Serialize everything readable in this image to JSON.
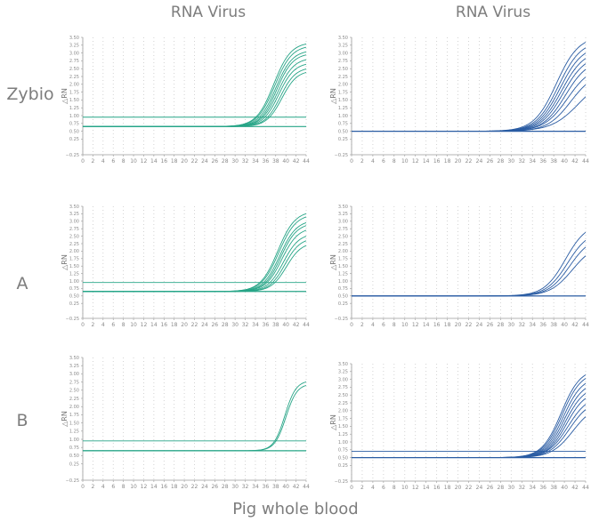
{
  "column_titles": [
    "RNA Virus",
    "RNA Virus"
  ],
  "row_labels": [
    "Zybio",
    "A",
    "B"
  ],
  "footer": "Pig whole blood",
  "colors": {
    "green": "#27a587",
    "blue": "#2a5ca3",
    "axis": "#9a9a9a",
    "grid": "#c9c9c9",
    "text": "#7d7d7d"
  },
  "chart_data": [
    {
      "type": "line",
      "ylabel": "△RN",
      "xlim": [
        0,
        44
      ],
      "ylim": [
        -0.25,
        3.5
      ],
      "x_ticks": [
        0,
        2,
        4,
        6,
        8,
        10,
        12,
        14,
        16,
        18,
        20,
        22,
        24,
        26,
        28,
        30,
        32,
        34,
        36,
        38,
        40,
        42,
        44
      ],
      "y_ticks": [
        -0.25,
        0.25,
        0.5,
        0.75,
        1.0,
        1.25,
        1.5,
        1.75,
        2.0,
        2.25,
        2.5,
        2.75,
        3.0,
        3.25,
        3.5
      ],
      "color": "#27a587",
      "baseline": 0.65,
      "threshold": 0.95,
      "curves": [
        {
          "plateau": 3.35,
          "midpoint": 37.6,
          "steepness": 1.7
        },
        {
          "plateau": 3.25,
          "midpoint": 37.8,
          "steepness": 1.7
        },
        {
          "plateau": 3.1,
          "midpoint": 38.0,
          "steepness": 1.65
        },
        {
          "plateau": 3.0,
          "midpoint": 38.2,
          "steepness": 1.6
        },
        {
          "plateau": 2.85,
          "midpoint": 38.4,
          "steepness": 1.6
        },
        {
          "plateau": 2.7,
          "midpoint": 38.6,
          "steepness": 1.55
        },
        {
          "plateau": 2.55,
          "midpoint": 38.9,
          "steepness": 1.5
        },
        {
          "plateau": 2.45,
          "midpoint": 39.2,
          "steepness": 1.5
        }
      ]
    },
    {
      "type": "line",
      "ylabel": "△RN",
      "xlim": [
        0,
        44
      ],
      "ylim": [
        -0.25,
        3.5
      ],
      "x_ticks": [
        0,
        2,
        4,
        6,
        8,
        10,
        12,
        14,
        16,
        18,
        20,
        22,
        24,
        26,
        28,
        30,
        32,
        34,
        36,
        38,
        40,
        42,
        44
      ],
      "y_ticks": [
        -0.25,
        0.25,
        0.5,
        0.75,
        1.0,
        1.25,
        1.5,
        1.75,
        2.0,
        2.25,
        2.5,
        2.75,
        3.0,
        3.25,
        3.5
      ],
      "color": "#2a5ca3",
      "baseline": 0.5,
      "threshold": 0.5,
      "curves": [
        {
          "plateau": 3.55,
          "midpoint": 38.5,
          "steepness": 2.1
        },
        {
          "plateau": 3.4,
          "midpoint": 38.9,
          "steepness": 2.1
        },
        {
          "plateau": 3.25,
          "midpoint": 39.2,
          "steepness": 2.1
        },
        {
          "plateau": 3.1,
          "midpoint": 39.5,
          "steepness": 2.1
        },
        {
          "plateau": 2.95,
          "midpoint": 39.8,
          "steepness": 2.1
        },
        {
          "plateau": 2.8,
          "midpoint": 40.2,
          "steepness": 2.1
        },
        {
          "plateau": 2.6,
          "midpoint": 40.6,
          "steepness": 2.2
        },
        {
          "plateau": 2.4,
          "midpoint": 41.2,
          "steepness": 2.2
        },
        {
          "plateau": 2.3,
          "midpoint": 42.8,
          "steepness": 2.6
        }
      ]
    },
    {
      "type": "line",
      "ylabel": "△RN",
      "xlim": [
        0,
        44
      ],
      "ylim": [
        -0.25,
        3.5
      ],
      "x_ticks": [
        0,
        2,
        4,
        6,
        8,
        10,
        12,
        14,
        16,
        18,
        20,
        22,
        24,
        26,
        28,
        30,
        32,
        34,
        36,
        38,
        40,
        42,
        44
      ],
      "y_ticks": [
        -0.25,
        0.25,
        0.5,
        0.75,
        1.0,
        1.25,
        1.5,
        1.75,
        2.0,
        2.25,
        2.5,
        2.75,
        3.0,
        3.25,
        3.5
      ],
      "color": "#27a587",
      "baseline": 0.65,
      "threshold": 0.95,
      "curves": [
        {
          "plateau": 3.35,
          "midpoint": 38.4,
          "steepness": 1.7
        },
        {
          "plateau": 3.25,
          "midpoint": 38.6,
          "steepness": 1.7
        },
        {
          "plateau": 3.05,
          "midpoint": 38.8,
          "steepness": 1.65
        },
        {
          "plateau": 2.95,
          "midpoint": 39.0,
          "steepness": 1.6
        },
        {
          "plateau": 2.8,
          "midpoint": 39.2,
          "steepness": 1.6
        },
        {
          "plateau": 2.6,
          "midpoint": 39.5,
          "steepness": 1.55
        },
        {
          "plateau": 2.45,
          "midpoint": 39.8,
          "steepness": 1.5
        },
        {
          "plateau": 2.3,
          "midpoint": 40.1,
          "steepness": 1.5
        }
      ]
    },
    {
      "type": "line",
      "ylabel": "△RN",
      "xlim": [
        0,
        44
      ],
      "ylim": [
        -0.25,
        3.5
      ],
      "x_ticks": [
        0,
        2,
        4,
        6,
        8,
        10,
        12,
        14,
        16,
        18,
        20,
        22,
        24,
        26,
        28,
        30,
        32,
        34,
        36,
        38,
        40,
        42,
        44
      ],
      "y_ticks": [
        -0.25,
        0.25,
        0.5,
        0.75,
        1.0,
        1.25,
        1.5,
        1.75,
        2.0,
        2.25,
        2.5,
        2.75,
        3.0,
        3.25,
        3.5
      ],
      "color": "#2a5ca3",
      "baseline": 0.5,
      "threshold": 0.5,
      "curves": [
        {
          "plateau": 2.95,
          "midpoint": 40.2,
          "steepness": 2.0
        },
        {
          "plateau": 2.7,
          "midpoint": 40.6,
          "steepness": 2.0
        },
        {
          "plateau": 2.5,
          "midpoint": 41.0,
          "steepness": 2.0
        },
        {
          "plateau": 2.25,
          "midpoint": 41.5,
          "steepness": 2.1
        }
      ]
    },
    {
      "type": "line",
      "ylabel": "△RN",
      "xlim": [
        0,
        44
      ],
      "ylim": [
        -0.25,
        3.5
      ],
      "x_ticks": [
        0,
        2,
        4,
        6,
        8,
        10,
        12,
        14,
        16,
        18,
        20,
        22,
        24,
        26,
        28,
        30,
        32,
        34,
        36,
        38,
        40,
        42,
        44
      ],
      "y_ticks": [
        -0.25,
        0.25,
        0.5,
        0.75,
        1.0,
        1.25,
        1.5,
        1.75,
        2.0,
        2.25,
        2.5,
        2.75,
        3.0,
        3.25,
        3.5
      ],
      "color": "#27a587",
      "baseline": 0.65,
      "threshold": 0.95,
      "curves": [
        {
          "plateau": 2.8,
          "midpoint": 39.8,
          "steepness": 1.1
        },
        {
          "plateau": 2.7,
          "midpoint": 40.0,
          "steepness": 1.1
        }
      ]
    },
    {
      "type": "line",
      "ylabel": "△RN",
      "xlim": [
        0,
        44
      ],
      "ylim": [
        -0.25,
        3.5
      ],
      "x_ticks": [
        0,
        2,
        4,
        6,
        8,
        10,
        12,
        14,
        16,
        18,
        20,
        22,
        24,
        26,
        28,
        30,
        32,
        34,
        36,
        38,
        40,
        42,
        44
      ],
      "y_ticks": [
        -0.25,
        0.25,
        0.5,
        0.75,
        1.0,
        1.25,
        1.5,
        1.75,
        2.0,
        2.25,
        2.5,
        2.75,
        3.0,
        3.25,
        3.5
      ],
      "color": "#2a5ca3",
      "baseline": 0.5,
      "threshold": 0.7,
      "curves": [
        {
          "plateau": 3.35,
          "midpoint": 39.4,
          "steepness": 1.8
        },
        {
          "plateau": 3.25,
          "midpoint": 39.6,
          "steepness": 1.8
        },
        {
          "plateau": 3.1,
          "midpoint": 39.8,
          "steepness": 1.8
        },
        {
          "plateau": 2.95,
          "midpoint": 40.0,
          "steepness": 1.8
        },
        {
          "plateau": 2.8,
          "midpoint": 40.2,
          "steepness": 1.8
        },
        {
          "plateau": 2.65,
          "midpoint": 40.4,
          "steepness": 1.8
        },
        {
          "plateau": 2.5,
          "midpoint": 40.7,
          "steepness": 1.9
        },
        {
          "plateau": 2.35,
          "midpoint": 41.0,
          "steepness": 1.9
        },
        {
          "plateau": 2.2,
          "midpoint": 41.6,
          "steepness": 2.0
        }
      ]
    }
  ]
}
